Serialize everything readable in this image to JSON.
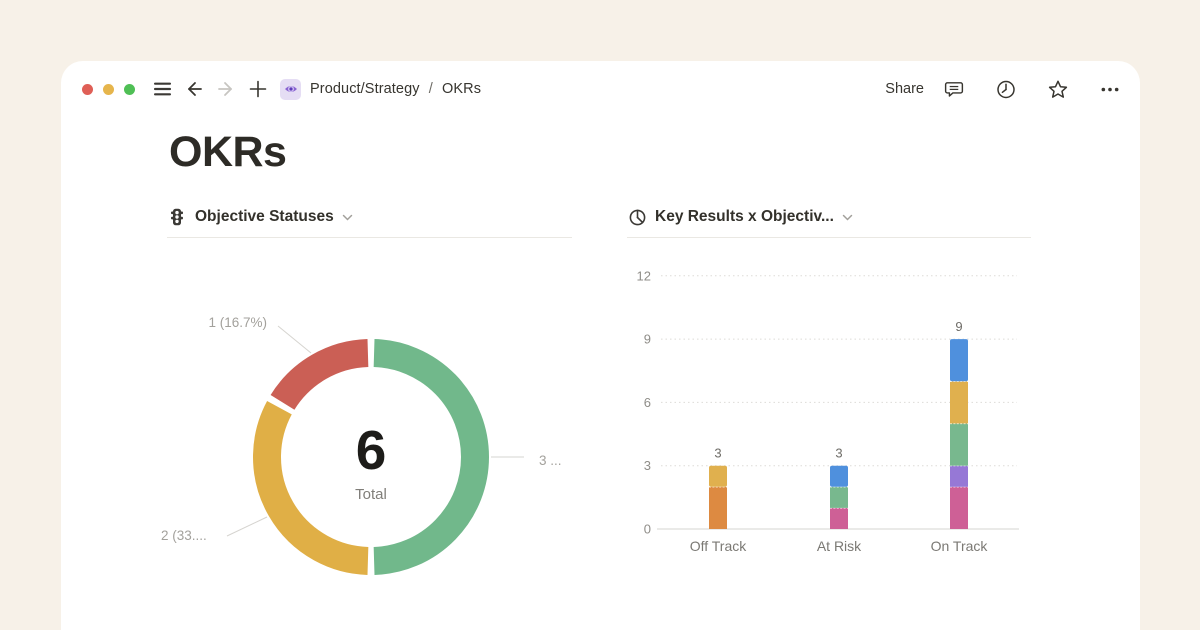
{
  "window": {
    "breadcrumb": {
      "path": "Product/Strategy",
      "separator": "/",
      "current": "OKRs"
    },
    "actions": {
      "share": "Share"
    },
    "icons": {
      "left": [
        "sidebar-menu",
        "back",
        "forward",
        "new-page",
        "page-eye"
      ],
      "right": [
        "comments",
        "updates-clock",
        "favorite-star",
        "more-options"
      ]
    },
    "traffic_lights": {
      "close": "#df5f56",
      "minimize": "#e6b54c",
      "zoom": "#4fbf55"
    }
  },
  "page": {
    "title": "OKRs"
  },
  "panels": {
    "donut_title": "Objective Statuses",
    "bar_title": "Key Results x Objectiv..."
  },
  "chart_data": [
    {
      "type": "donut",
      "title": "Objective Statuses",
      "total": 6,
      "center_caption": "Total",
      "segments": [
        {
          "label": "3 ...",
          "value": 3,
          "color": "#71b88b"
        },
        {
          "label": "2 (33....",
          "value": 2,
          "color": "#e0af46"
        },
        {
          "label": "1 (16.7%)",
          "value": 1,
          "color": "#cb5f55"
        }
      ]
    },
    {
      "type": "stacked-bar",
      "title": "Key Results x Objectiv...",
      "categories": [
        "Off Track",
        "At Risk",
        "On Track"
      ],
      "yticks": [
        0,
        3,
        6,
        9,
        12
      ],
      "ylim": [
        0,
        12
      ],
      "bars": [
        {
          "category": "Off Track",
          "total": 3,
          "segments": [
            {
              "value": 2,
              "color": "#dd8a41"
            },
            {
              "value": 1,
              "color": "#e0b04e"
            }
          ]
        },
        {
          "category": "At Risk",
          "total": 3,
          "segments": [
            {
              "value": 1,
              "color": "#ce6096"
            },
            {
              "value": 1,
              "color": "#78b88e"
            },
            {
              "value": 1,
              "color": "#4f90dd"
            }
          ]
        },
        {
          "category": "On Track",
          "total": 9,
          "segments": [
            {
              "value": 2,
              "color": "#ce6096"
            },
            {
              "value": 1,
              "color": "#9678d6"
            },
            {
              "value": 2,
              "color": "#78b88e"
            },
            {
              "value": 2,
              "color": "#e0b04e"
            },
            {
              "value": 2,
              "color": "#4f90dd"
            }
          ]
        }
      ]
    }
  ]
}
